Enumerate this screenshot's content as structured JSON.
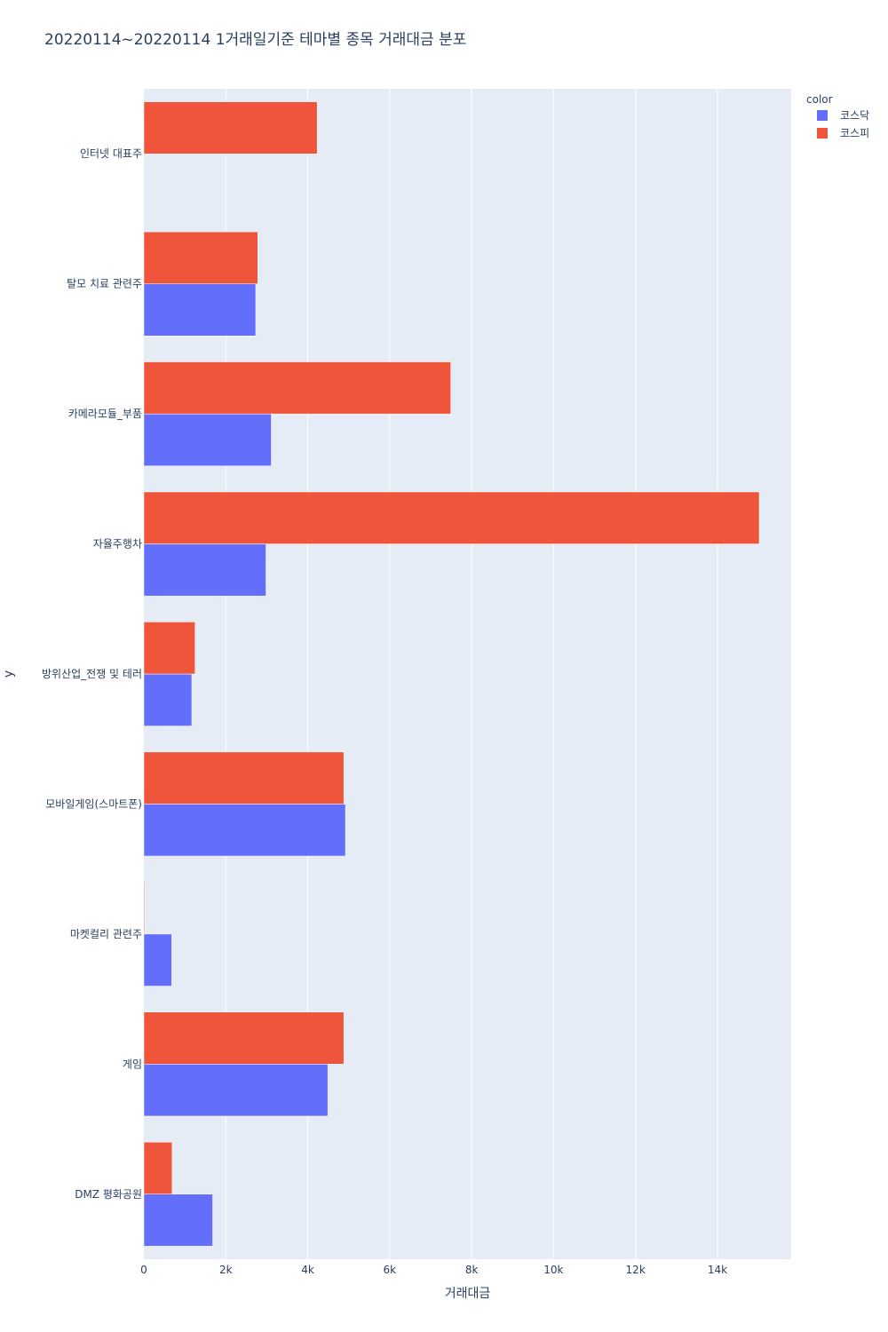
{
  "chart_data": {
    "type": "bar",
    "orientation": "horizontal",
    "barmode": "group",
    "title": "20220114~20220114 1거래일기준 테마별 종목 거래대금 분포",
    "xlabel": "거래대금",
    "ylabel": "y",
    "xlim": [
      0,
      15800
    ],
    "x_ticks": [
      0,
      2000,
      4000,
      6000,
      8000,
      10000,
      12000,
      14000
    ],
    "x_tick_labels": [
      "0",
      "2k",
      "4k",
      "6k",
      "8k",
      "10k",
      "12k",
      "14k"
    ],
    "categories": [
      "인터넷 대표주",
      "탈모 치료 관련주",
      "카메라모듈_부품",
      "자율주행차",
      "방위산업_전쟁 및 테러",
      "모바일게임(스마트폰)",
      "마켓컬리 관련주",
      "게임",
      "DMZ 평화공원"
    ],
    "legend_title": "color",
    "legend_position": "top-right",
    "grid": true,
    "series": [
      {
        "name": "코스닥",
        "color": "#636efa",
        "values": [
          0,
          2730,
          3110,
          2980,
          1170,
          4920,
          680,
          4490,
          1680
        ]
      },
      {
        "name": "코스피",
        "color": "#ef553b",
        "values": [
          4230,
          2780,
          7490,
          15020,
          1250,
          4880,
          20,
          4880,
          690
        ]
      }
    ]
  }
}
